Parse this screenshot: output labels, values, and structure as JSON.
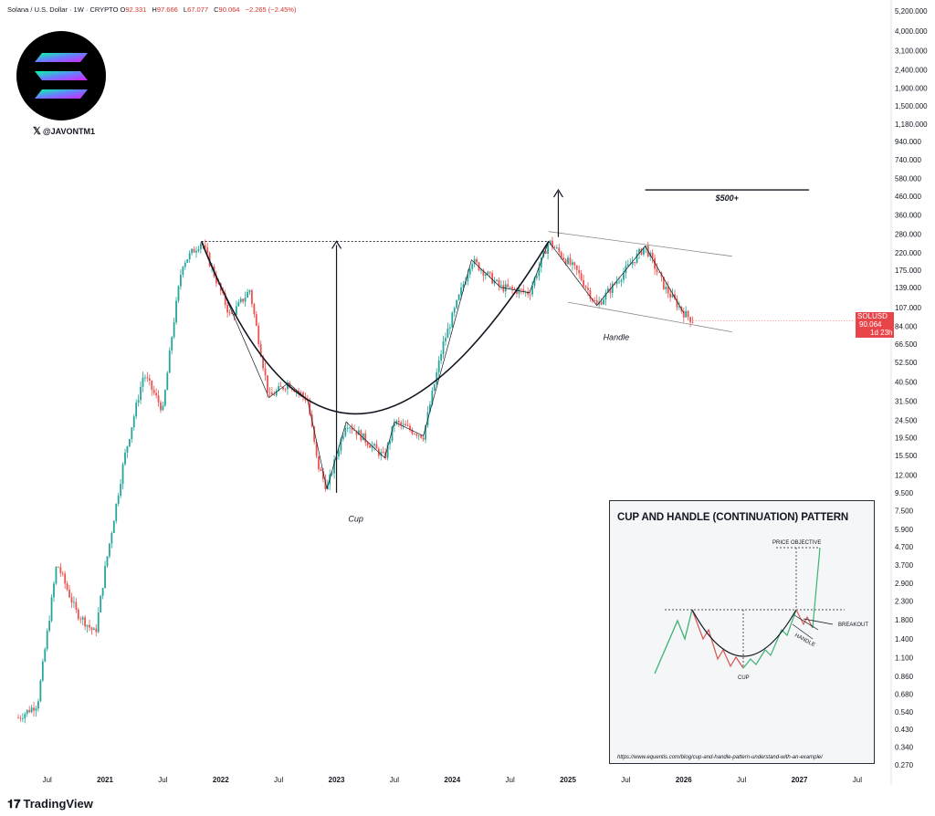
{
  "header": {
    "symbol": "Solana / U.S. Dollar · 1W · CRYPTO",
    "o_label": "O",
    "o_value": "92.331",
    "h_label": "H",
    "h_value": "97.666",
    "l_label": "L",
    "l_value": "67.077",
    "c_label": "C",
    "c_value": "90.064",
    "change": "−2.265 (−2.45%)"
  },
  "watermark": {
    "handle": "@JAVONTM1",
    "logo": "solana-logo-icon",
    "x_icon": "x-logo-icon"
  },
  "footer": {
    "brand": "TradingView",
    "brand_icon": "tradingview-logo-icon"
  },
  "colors": {
    "up": "#26a69a",
    "down": "#ef5350",
    "badge": "#e8454a",
    "green_line": "#3cb371",
    "red_line": "#d9534f"
  },
  "price_badge": {
    "symbol": "SOLUSD",
    "price": "90.064",
    "countdown": "1d 23h"
  },
  "chart_data": {
    "type": "candlestick",
    "title": "Solana / U.S. Dollar · 1W · CRYPTO",
    "y_scale": "log",
    "y_ticks": [
      "5,200.000",
      "4,000.000",
      "3,100.000",
      "2,400.000",
      "1,900.000",
      "1,500.000",
      "1,180.000",
      "940.000",
      "740.000",
      "580.000",
      "460.000",
      "360.000",
      "280.000",
      "220.000",
      "175.000",
      "139.000",
      "107.000",
      "84.000",
      "66.500",
      "52.500",
      "40.500",
      "31.500",
      "24.500",
      "19.500",
      "15.500",
      "12.000",
      "9.500",
      "7.500",
      "5.900",
      "4.700",
      "3.700",
      "2.900",
      "2.300",
      "1.800",
      "1.400",
      "1.100",
      "0.860",
      "0.680",
      "0.540",
      "0.430",
      "0.340",
      "0.270"
    ],
    "x_ticks": [
      "Jul",
      "2021",
      "Jul",
      "2022",
      "Jul",
      "2023",
      "Jul",
      "2024",
      "Jul",
      "2025",
      "Jul",
      "2026",
      "Jul",
      "2027",
      "Jul"
    ],
    "x_range": [
      "2020-04",
      "2027-09"
    ],
    "price_path": [
      {
        "date": "2020-04",
        "price": 0.5
      },
      {
        "date": "2020-06",
        "price": 0.6
      },
      {
        "date": "2020-08",
        "price": 3.8
      },
      {
        "date": "2020-10",
        "price": 2.0
      },
      {
        "date": "2020-12",
        "price": 1.5
      },
      {
        "date": "2021-01",
        "price": 3.5
      },
      {
        "date": "2021-03",
        "price": 15
      },
      {
        "date": "2021-05",
        "price": 45
      },
      {
        "date": "2021-07",
        "price": 28
      },
      {
        "date": "2021-08",
        "price": 80
      },
      {
        "date": "2021-09",
        "price": 190
      },
      {
        "date": "2021-11",
        "price": 255
      },
      {
        "date": "2022-02",
        "price": 95
      },
      {
        "date": "2022-04",
        "price": 135
      },
      {
        "date": "2022-06",
        "price": 33
      },
      {
        "date": "2022-08",
        "price": 40
      },
      {
        "date": "2022-10",
        "price": 32
      },
      {
        "date": "2022-11",
        "price": 14
      },
      {
        "date": "2022-12",
        "price": 10
      },
      {
        "date": "2023-02",
        "price": 24
      },
      {
        "date": "2023-06",
        "price": 15
      },
      {
        "date": "2023-07",
        "price": 24
      },
      {
        "date": "2023-10",
        "price": 20
      },
      {
        "date": "2023-12",
        "price": 65
      },
      {
        "date": "2024-03",
        "price": 200
      },
      {
        "date": "2024-06",
        "price": 140
      },
      {
        "date": "2024-09",
        "price": 130
      },
      {
        "date": "2024-11",
        "price": 255
      },
      {
        "date": "2025-02",
        "price": 170
      },
      {
        "date": "2025-04",
        "price": 110
      },
      {
        "date": "2025-06",
        "price": 150
      },
      {
        "date": "2025-09",
        "price": 240
      },
      {
        "date": "2025-11",
        "price": 140
      },
      {
        "date": "2026-01",
        "price": 100
      },
      {
        "date": "2026-02",
        "price": 90
      }
    ],
    "last_price": 90.064,
    "annotations": [
      "Cup",
      "Handle",
      "$500+"
    ],
    "inset": {
      "title": "CUP AND HANDLE (CONTINUATION) PATTERN",
      "labels": [
        "PRICE OBJECTIVE",
        "BREAKOUT",
        "HANDLE",
        "CUP"
      ],
      "source": "https://www.equentis.com/blog/cup-and-handle-pattern-understand-with-an-example/"
    }
  }
}
